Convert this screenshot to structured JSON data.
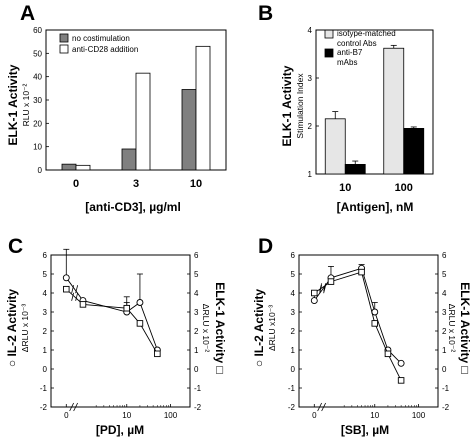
{
  "chart_data": [
    {
      "panel": "A",
      "type": "bar",
      "categories": [
        "0",
        "3",
        "10"
      ],
      "series": [
        {
          "name": "no costimulation",
          "values": [
            2.5,
            9,
            34.5
          ],
          "color": "#808080"
        },
        {
          "name": "anti-CD28 addition",
          "values": [
            2,
            41.5,
            53
          ],
          "color": "#ffffff"
        }
      ],
      "ylabel": "ELK-1 Activity",
      "ylabel_units": "RLU x 10⁻²",
      "xlabel": "[anti-CD3], µg/ml",
      "ylim": [
        0,
        60
      ],
      "yticks": [
        "0",
        "10",
        "20",
        "30",
        "40",
        "50",
        "60"
      ],
      "legend": "top-left"
    },
    {
      "panel": "B",
      "type": "bar",
      "categories": [
        "10",
        "100"
      ],
      "series": [
        {
          "name": "isotype-matched control Abs",
          "values": [
            2.15,
            3.62
          ],
          "errors": [
            0.15,
            0.06
          ],
          "color": "#e6e6e6"
        },
        {
          "name": "anti-B7 mAbs",
          "values": [
            1.2,
            1.95
          ],
          "errors": [
            0.07,
            0.03
          ],
          "color": "#000000"
        }
      ],
      "ylabel": "ELK-1 Activity",
      "ylabel_units": "Stimulation Index",
      "xlabel": "[Antigen], nM",
      "ylim": [
        1,
        4
      ],
      "yticks": [
        "1",
        "2",
        "3",
        "4"
      ],
      "legend": "top-left"
    },
    {
      "panel": "C",
      "type": "line",
      "xlabel": "[PD], µM",
      "xscale": "log with break at 0",
      "xticks": [
        "0",
        "10",
        "100"
      ],
      "y_left_label": "IL-2 Activity",
      "y_left_units": "ΔRLU x 10⁻³",
      "y_right_label": "ELK-1 Activity",
      "y_right_units": "ΔRLU x 10⁻²",
      "ylim": [
        -2,
        6
      ],
      "yticks": [
        "-2",
        "-1",
        "0",
        "1",
        "2",
        "3",
        "4",
        "5",
        "6"
      ],
      "series": [
        {
          "name": "IL-2 Activity",
          "marker": "circle",
          "x": [
            0,
            1,
            10,
            20,
            50
          ],
          "y": [
            4.8,
            3.6,
            3.0,
            3.5,
            1.0
          ],
          "errors": [
            1.5,
            0.0,
            0.8,
            1.5,
            0.0
          ]
        },
        {
          "name": "ELK-1 Activity",
          "marker": "square",
          "x": [
            0,
            1,
            10,
            20,
            50
          ],
          "y": [
            4.2,
            3.4,
            3.2,
            2.4,
            0.8
          ],
          "errors": [
            0.0,
            0.0,
            0.3,
            0.0,
            0.0
          ]
        }
      ]
    },
    {
      "panel": "D",
      "type": "line",
      "xlabel": "[SB], µM",
      "xscale": "log with break at 0",
      "xticks": [
        "0",
        "10",
        "100"
      ],
      "y_left_label": "IL-2 Activity",
      "y_left_units": "ΔRLU x10⁻³",
      "y_right_label": "ELK-1 Activity",
      "y_right_units": "ΔRLU x 10⁻²",
      "ylim": [
        -2,
        6
      ],
      "yticks": [
        "-2",
        "-1",
        "0",
        "1",
        "2",
        "3",
        "4",
        "5",
        "6"
      ],
      "series": [
        {
          "name": "IL-2 Activity",
          "marker": "circle",
          "x": [
            0,
            1,
            5,
            10,
            20,
            40
          ],
          "y": [
            3.6,
            4.8,
            5.3,
            3.0,
            1.0,
            0.3
          ],
          "errors": [
            0.3,
            0.6,
            0.2,
            0.5,
            0.0,
            0.0
          ]
        },
        {
          "name": "ELK-1 Activity",
          "marker": "square",
          "x": [
            0,
            1,
            5,
            10,
            20,
            40
          ],
          "y": [
            4.0,
            4.6,
            5.1,
            2.4,
            0.8,
            -0.6
          ],
          "errors": [
            0.0,
            0.0,
            0.0,
            0.0,
            0.0,
            0.0
          ]
        }
      ]
    }
  ]
}
